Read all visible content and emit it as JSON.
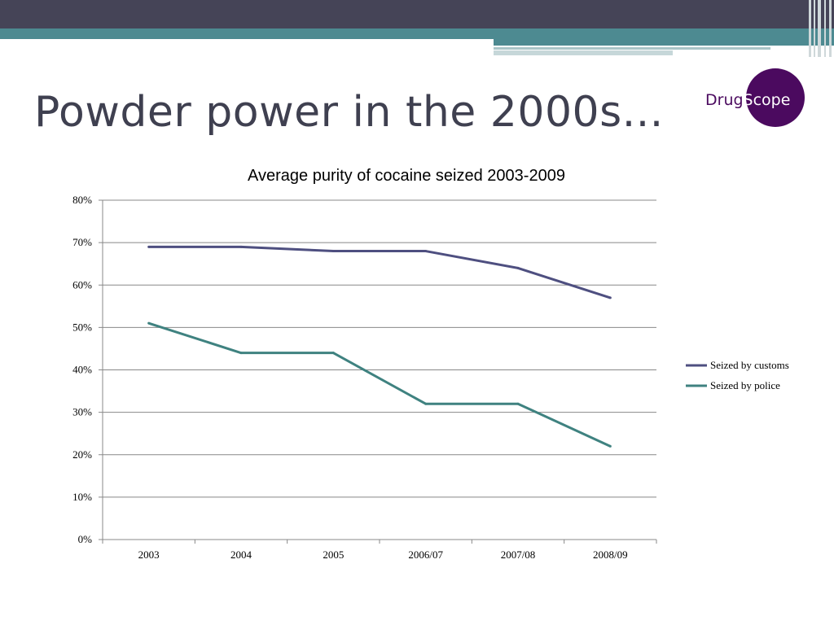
{
  "slide": {
    "title": "Powder power in the 2000s...",
    "logo_text_left": "Drug",
    "logo_text_right": "Scope"
  },
  "colors": {
    "header": "#454457",
    "accent": "#4d8a91",
    "title_text": "#3f4050",
    "logo": "#4b0a5f"
  },
  "chart_data": {
    "type": "line",
    "title": "Average purity of cocaine seized 2003-2009",
    "xlabel": "",
    "ylabel": "",
    "categories": [
      "2003",
      "2004",
      "2005",
      "2006/07",
      "2007/08",
      "2008/09"
    ],
    "y_ticks": [
      "0%",
      "10%",
      "20%",
      "30%",
      "40%",
      "50%",
      "60%",
      "70%",
      "80%"
    ],
    "ylim": [
      0,
      80
    ],
    "grid": true,
    "legend_position": "right",
    "series": [
      {
        "name": "Seized by customs",
        "color": "#4e4f80",
        "values": [
          69,
          69,
          68,
          68,
          64,
          57
        ]
      },
      {
        "name": "Seized by police",
        "color": "#3f8280",
        "values": [
          51,
          44,
          44,
          32,
          32,
          22
        ]
      }
    ]
  }
}
